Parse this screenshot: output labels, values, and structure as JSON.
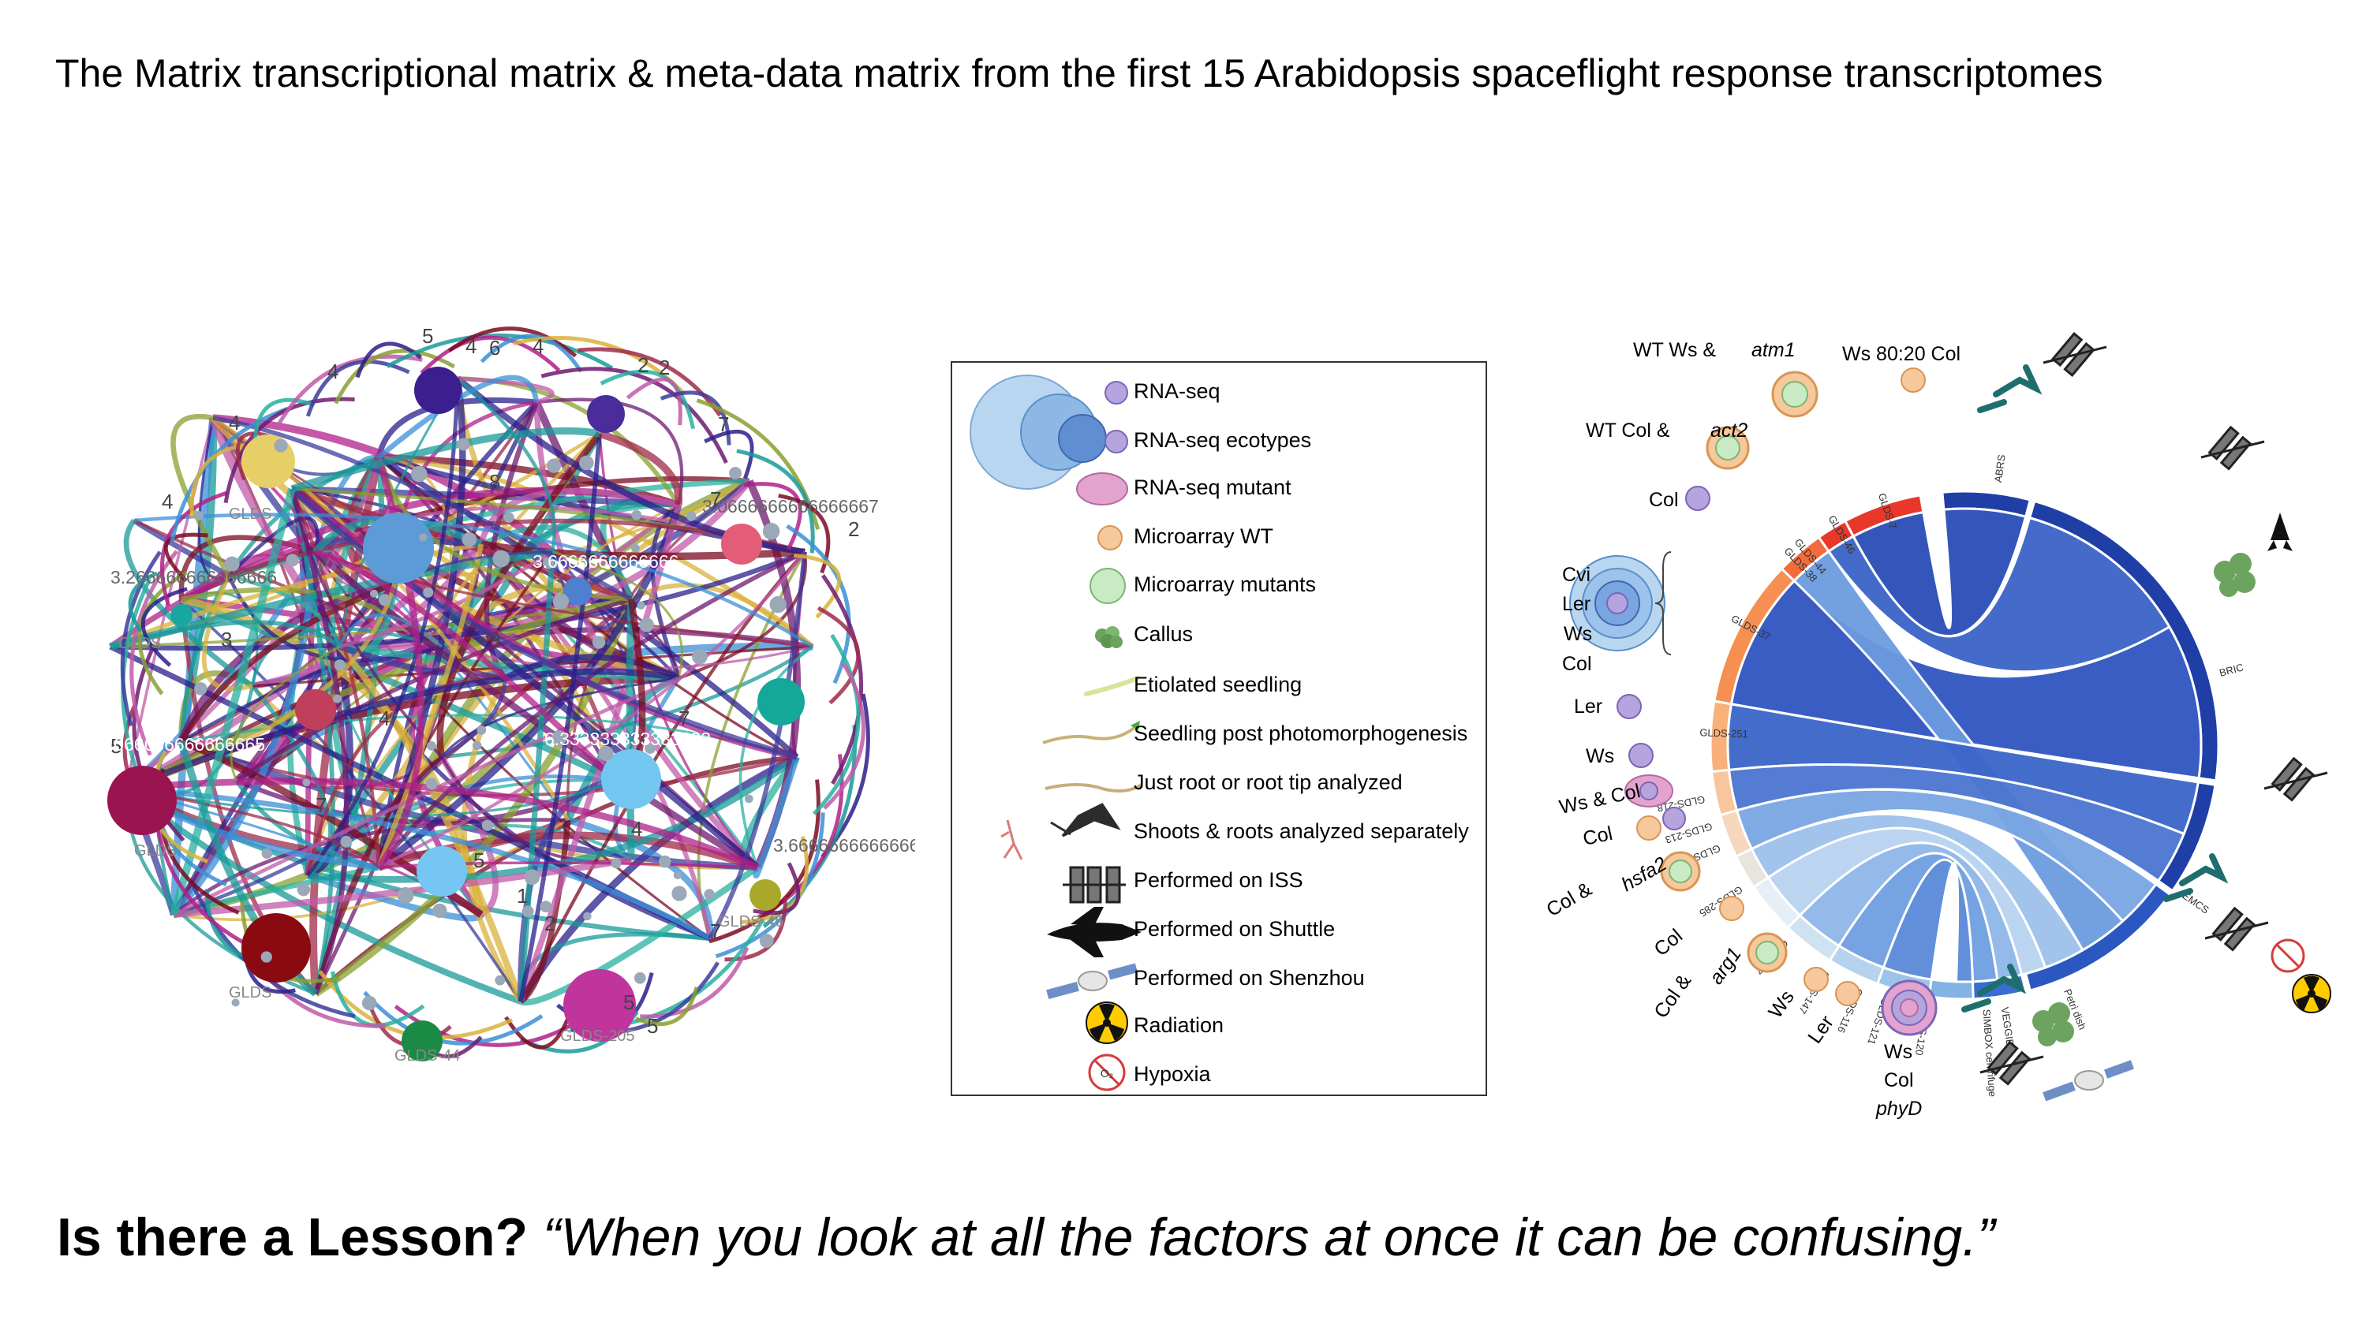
{
  "title": "The Matrix transcriptional matrix & meta-data matrix from the first 15 Arabidopsis spaceflight response transcriptomes",
  "lesson": {
    "bold": "Is there a Lesson?",
    "quote": "“When you look at all the factors at once it can be confusing.”"
  },
  "network": {
    "numbers": [
      "5",
      "4",
      "6",
      "4",
      "4",
      "2",
      "2",
      "7",
      "4",
      "4",
      "7",
      "5",
      "8",
      "5",
      "4",
      "7",
      "2",
      "1",
      "2",
      "7",
      "5",
      "5",
      "9",
      "3",
      "7",
      "4",
      "7"
    ],
    "node_labels": [
      "GLDS-44",
      "GLDS-205",
      "GLDS-46",
      "GLDS",
      "GLDS",
      "GLDS",
      "GLDS"
    ],
    "value_labels": [
      "3.266666666666666",
      "3.0666666666666667",
      "4.066666666666665",
      "3.666666666666665",
      "6.333333333333333",
      "3.6666666666666"
    ]
  },
  "legend": {
    "items": [
      {
        "label": "RNA-seq",
        "icon": "purple-circle-icon"
      },
      {
        "label": "RNA-seq ecotypes",
        "icon": "blue-circles-icon"
      },
      {
        "label": "RNA-seq mutant",
        "icon": "pink-ellipse-icon"
      },
      {
        "label": "Microarray WT",
        "icon": "orange-circle-icon"
      },
      {
        "label": "Microarray mutants",
        "icon": "green-circle-icon"
      },
      {
        "label": "Callus",
        "icon": "callus-icon"
      },
      {
        "label": "Etiolated  seedling",
        "icon": "etiolated-seedling-icon"
      },
      {
        "label": "Seedling post photomorphogenesis",
        "icon": "green-seedling-icon"
      },
      {
        "label": "Just root or root tip analyzed",
        "icon": "root-icon"
      },
      {
        "label": "Shoots & roots analyzed separately",
        "icon": "shoot-root-icon"
      },
      {
        "label": "Performed on ISS",
        "icon": "iss-icon"
      },
      {
        "label": "Performed on Shuttle",
        "icon": "shuttle-icon"
      },
      {
        "label": "Performed on Shenzhou",
        "icon": "shenzhou-icon"
      },
      {
        "label": "Radiation",
        "icon": "radiation-icon"
      },
      {
        "label": "Hypoxia",
        "icon": "hypoxia-icon"
      }
    ]
  },
  "chord": {
    "genotypes": {
      "wt_ws": "WT Ws &",
      "atm1": "atm1",
      "ws_col": "Ws 80:20 Col",
      "wt_col": "WT Col &",
      "act2": "act2",
      "col1": "Col",
      "cvi": "Cvi",
      "ler": "Ler",
      "ws": "Ws",
      "col": "Col",
      "ler2": "Ler",
      "ws2": "Ws",
      "ws_and_col": "Ws & Col",
      "col2": "Col",
      "col_hsfa2": "Col &",
      "hsfa2": "hsfa2",
      "col3": "Col",
      "col_arg1": "Col &",
      "arg1": "arg1",
      "ws3": "Ws",
      "ler3": "Ler",
      "ws4": "Ws",
      "col4": "Col",
      "phyd": "phyD"
    },
    "glds": [
      "GLDS-7",
      "GLDS-46",
      "GLDS-44",
      "GLDS-38",
      "GLDS-37",
      "GLDS-251",
      "GLDS-218",
      "GLDS-213",
      "GLDS-208",
      "GLDS-285",
      "GLDS-17",
      "GLDS-147",
      "GLDS-116",
      "GLDS-121",
      "GLDS-120"
    ],
    "hardware": [
      "ABRS",
      "BRIC",
      "EMCS",
      "Petri dish",
      "SIMBOX centrifuge",
      "VEGGIE"
    ],
    "o2": "O₂"
  }
}
